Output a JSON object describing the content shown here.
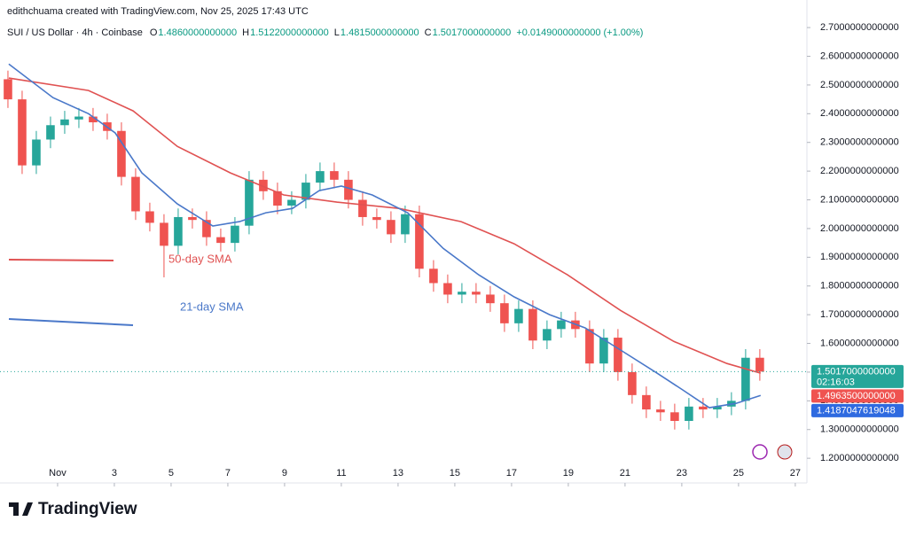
{
  "header": {
    "credit": "edithchuama created with TradingView.com, Nov 25, 2025 17:43 UTC",
    "symbol": "SUI / US Dollar · 4h · Coinbase",
    "ohlc": [
      {
        "key": "O",
        "value": "1.4860000000000"
      },
      {
        "key": "H",
        "value": "1.5122000000000"
      },
      {
        "key": "L",
        "value": "1.4815000000000"
      },
      {
        "key": "C",
        "value": "1.5017000000000"
      }
    ],
    "change": "+0.0149000000000 (+1.00%)"
  },
  "footer": {
    "brand": "TradingView"
  },
  "chart_data": {
    "type": "candlestick",
    "xlim": [
      -1.03,
      27.41
    ],
    "ylim": [
      1.114,
      2.796
    ],
    "xticks": [
      {
        "value": 1,
        "label": "Nov"
      },
      3,
      5,
      7,
      9,
      11,
      13,
      15,
      17,
      19,
      21,
      23,
      25,
      27
    ],
    "yticks": [
      {
        "value": 1.2,
        "label": "1.2000000000000"
      },
      {
        "value": 1.3,
        "label": "1.3000000000000"
      },
      {
        "value": 1.4,
        "label": "1.4000000000000"
      },
      {
        "value": 1.5,
        "label": "1.5000000000000"
      },
      {
        "value": 1.6,
        "label": "1.6000000000000"
      },
      {
        "value": 1.7,
        "label": "1.7000000000000"
      },
      {
        "value": 1.8,
        "label": "1.8000000000000"
      },
      {
        "value": 1.9,
        "label": "1.9000000000000"
      },
      {
        "value": 2.0,
        "label": "2.0000000000000"
      },
      {
        "value": 2.1,
        "label": "2.1000000000000"
      },
      {
        "value": 2.2,
        "label": "2.2000000000000"
      },
      {
        "value": 2.3,
        "label": "2.3000000000000"
      },
      {
        "value": 2.4,
        "label": "2.4000000000000"
      },
      {
        "value": 2.5,
        "label": "2.5000000000000"
      },
      {
        "value": 2.6,
        "label": "2.6000000000000"
      },
      {
        "value": 2.7,
        "label": "2.7000000000000"
      }
    ],
    "grid": false,
    "candles": {
      "up_color": "#26a69a",
      "down_color": "#ef5350",
      "x": [
        -0.75,
        -0.25,
        0.25,
        0.75,
        1.25,
        1.75,
        2.25,
        2.75,
        3.25,
        3.75,
        4.25,
        4.75,
        5.25,
        5.75,
        6.25,
        6.75,
        7.25,
        7.75,
        8.25,
        8.75,
        9.25,
        9.75,
        10.25,
        10.75,
        11.25,
        11.75,
        12.25,
        12.75,
        13.25,
        13.75,
        14.25,
        14.75,
        15.25,
        15.75,
        16.25,
        16.75,
        17.25,
        17.75,
        18.25,
        18.75,
        19.25,
        19.75,
        20.25,
        20.75,
        21.25,
        21.75,
        22.25,
        22.75,
        23.25,
        23.75,
        24.25,
        24.75,
        25.25,
        25.75
      ],
      "open": [
        2.52,
        2.45,
        2.22,
        2.31,
        2.36,
        2.38,
        2.39,
        2.37,
        2.34,
        2.18,
        2.06,
        2.02,
        1.94,
        2.04,
        2.03,
        1.97,
        1.95,
        2.01,
        2.17,
        2.13,
        2.08,
        2.1,
        2.16,
        2.2,
        2.17,
        2.1,
        2.04,
        2.03,
        1.98,
        2.05,
        1.86,
        1.81,
        1.77,
        1.78,
        1.77,
        1.74,
        1.67,
        1.72,
        1.61,
        1.65,
        1.68,
        1.65,
        1.53,
        1.62,
        1.5,
        1.42,
        1.37,
        1.36,
        1.33,
        1.38,
        1.37,
        1.38,
        1.4,
        1.55
      ],
      "high": [
        2.55,
        2.48,
        2.34,
        2.39,
        2.41,
        2.42,
        2.42,
        2.4,
        2.37,
        2.21,
        2.09,
        2.05,
        2.07,
        2.07,
        2.06,
        2.0,
        2.04,
        2.2,
        2.2,
        2.16,
        2.13,
        2.19,
        2.23,
        2.23,
        2.2,
        2.13,
        2.07,
        2.06,
        2.08,
        2.08,
        1.89,
        1.84,
        1.81,
        1.81,
        1.8,
        1.77,
        1.75,
        1.75,
        1.68,
        1.71,
        1.71,
        1.68,
        1.65,
        1.65,
        1.53,
        1.45,
        1.4,
        1.39,
        1.41,
        1.41,
        1.41,
        1.43,
        1.58,
        1.58
      ],
      "low": [
        2.42,
        2.19,
        2.19,
        2.28,
        2.33,
        2.35,
        2.34,
        2.31,
        2.15,
        2.03,
        1.99,
        1.83,
        1.91,
        2.0,
        1.94,
        1.92,
        1.92,
        1.98,
        2.1,
        2.05,
        2.05,
        2.07,
        2.13,
        2.14,
        2.07,
        2.01,
        2.0,
        1.95,
        1.95,
        1.83,
        1.78,
        1.74,
        1.74,
        1.74,
        1.71,
        1.64,
        1.64,
        1.58,
        1.58,
        1.62,
        1.62,
        1.5,
        1.5,
        1.47,
        1.39,
        1.34,
        1.33,
        1.3,
        1.3,
        1.34,
        1.34,
        1.35,
        1.37,
        1.47
      ],
      "close": [
        2.45,
        2.22,
        2.31,
        2.36,
        2.38,
        2.39,
        2.37,
        2.34,
        2.18,
        2.06,
        2.02,
        1.94,
        2.04,
        2.03,
        1.97,
        1.95,
        2.01,
        2.17,
        2.13,
        2.08,
        2.1,
        2.16,
        2.2,
        2.17,
        2.1,
        2.04,
        2.03,
        1.98,
        2.05,
        1.86,
        1.81,
        1.77,
        1.78,
        1.77,
        1.74,
        1.67,
        1.72,
        1.61,
        1.65,
        1.68,
        1.65,
        1.53,
        1.62,
        1.5,
        1.42,
        1.37,
        1.36,
        1.33,
        1.38,
        1.37,
        1.38,
        1.4,
        1.55,
        1.5017
      ]
    },
    "series": [
      {
        "name": "50-day SMA",
        "color": "#e05252",
        "x": [
          -0.72,
          2.09,
          3.66,
          5.22,
          7.09,
          8.97,
          10.84,
          13.03,
          15.22,
          17.09,
          18.97,
          20.84,
          22.72,
          24.59,
          25.78
        ],
        "values": [
          2.524,
          2.481,
          2.41,
          2.286,
          2.194,
          2.117,
          2.092,
          2.07,
          2.024,
          1.947,
          1.839,
          1.715,
          1.607,
          1.53,
          1.49635
        ]
      },
      {
        "name": "21-day SMA",
        "color": "#4a78c9",
        "x": [
          -0.72,
          0.84,
          2.09,
          3.03,
          3.97,
          5.22,
          6.47,
          7.41,
          8.34,
          9.28,
          10.22,
          11.0,
          12.09,
          13.34,
          14.59,
          15.84,
          17.09,
          18.34,
          19.59,
          20.84,
          22.09,
          23.03,
          23.97,
          24.91,
          25.78
        ],
        "values": [
          2.573,
          2.456,
          2.4,
          2.333,
          2.194,
          2.086,
          2.009,
          2.024,
          2.055,
          2.07,
          2.132,
          2.148,
          2.117,
          2.055,
          1.931,
          1.839,
          1.762,
          1.7,
          1.654,
          1.577,
          1.499,
          1.438,
          1.376,
          1.391,
          1.4187047619048
        ]
      }
    ],
    "price_labels": [
      {
        "value": 1.5017,
        "label": "1.5017000000000",
        "color": "#26a69a"
      },
      {
        "value": 1.49635,
        "label": "1.4963500000000",
        "color": "#ef5350"
      },
      {
        "value": 1.4187047619048,
        "label": "1.4187047619048",
        "color": "#2f6ae0"
      }
    ],
    "countdown": "02:16:03"
  }
}
